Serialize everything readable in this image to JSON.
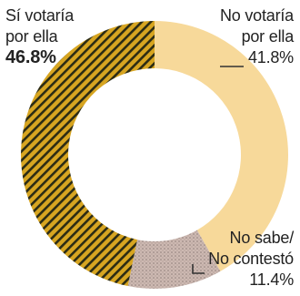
{
  "chart_data": {
    "type": "pie",
    "donut": true,
    "slices": [
      {
        "line1": "Sí votaría",
        "line2": "por ella",
        "value": 46.8,
        "label": "46.8%",
        "color": "#d7a521",
        "pattern": "hatched",
        "value_bold": true
      },
      {
        "line1": "No votaría",
        "line2": "por ella",
        "value": 41.8,
        "label": "41.8%",
        "color": "#f7d99a",
        "pattern": "solid",
        "value_bold": false
      },
      {
        "line1": "No sabe/",
        "line2": "No contestó",
        "value": 11.4,
        "label": "11.4%",
        "color": "#cbb8b0",
        "pattern": "dotted",
        "value_bold": false
      }
    ]
  }
}
